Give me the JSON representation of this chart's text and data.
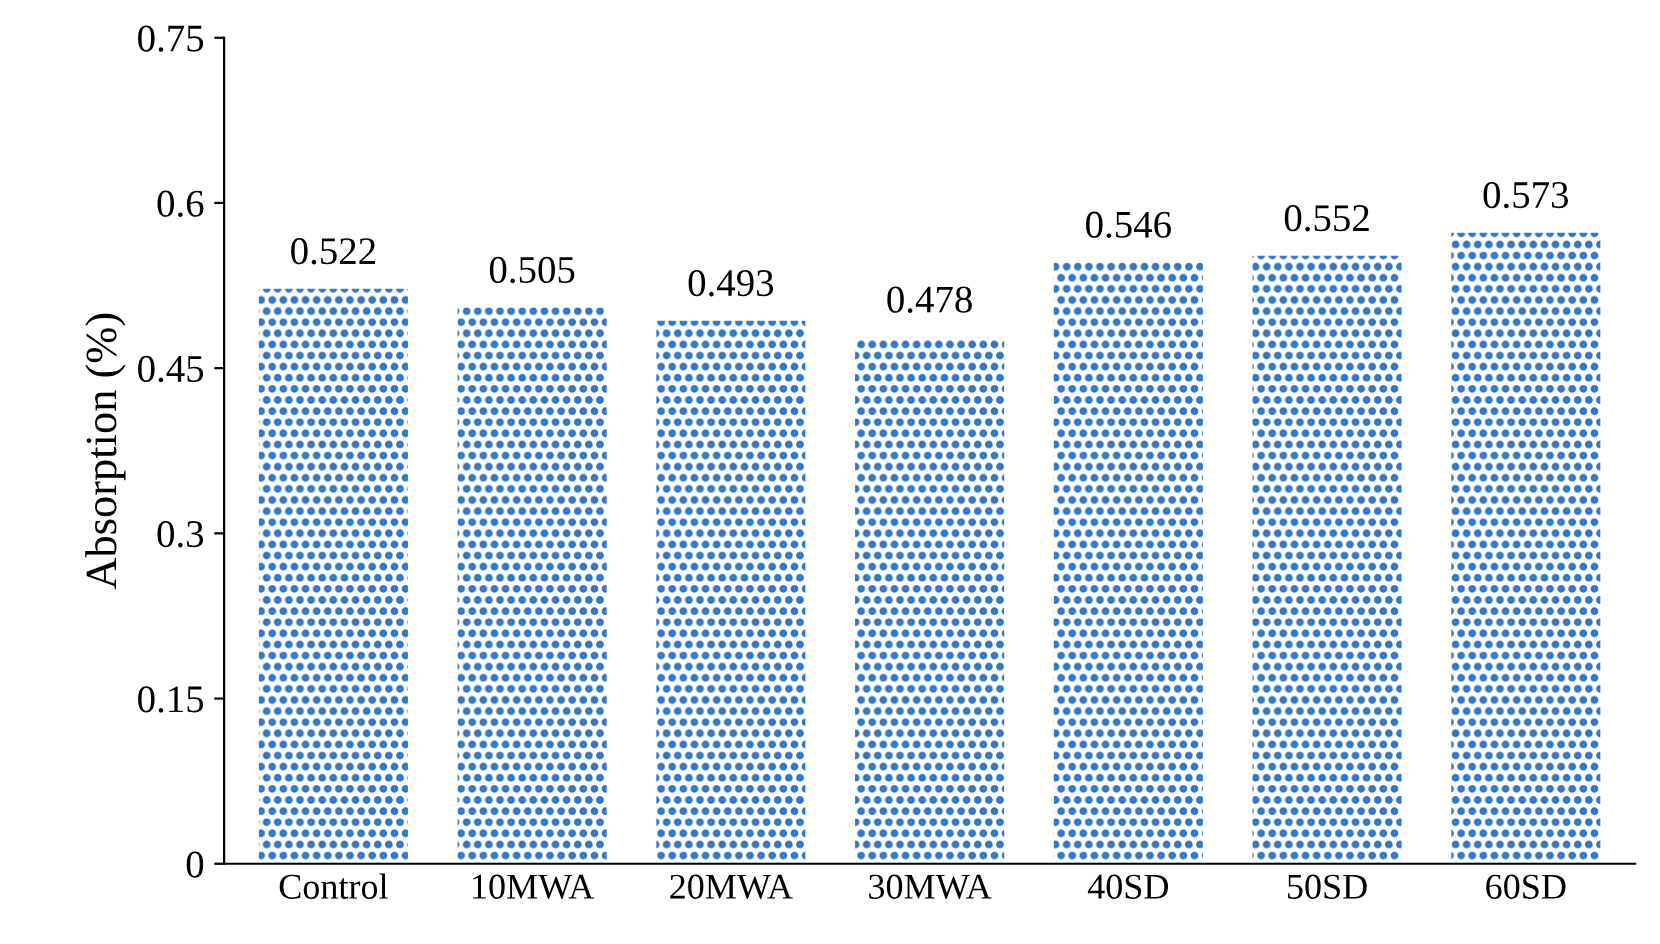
{
  "chart_data": {
    "type": "bar",
    "ylabel": "Absorption (%)",
    "categories": [
      "Control",
      "10MWA",
      "20MWA",
      "30MWA",
      "40SD",
      "50SD",
      "60SD"
    ],
    "values": [
      0.522,
      0.505,
      0.493,
      0.478,
      0.546,
      0.552,
      0.573
    ],
    "color": "#2e75c8",
    "ylim": [
      0,
      0.75
    ],
    "yticks": [
      0,
      0.15,
      0.3,
      0.45,
      0.6,
      0.75
    ],
    "grid": false,
    "data_labels": true
  }
}
